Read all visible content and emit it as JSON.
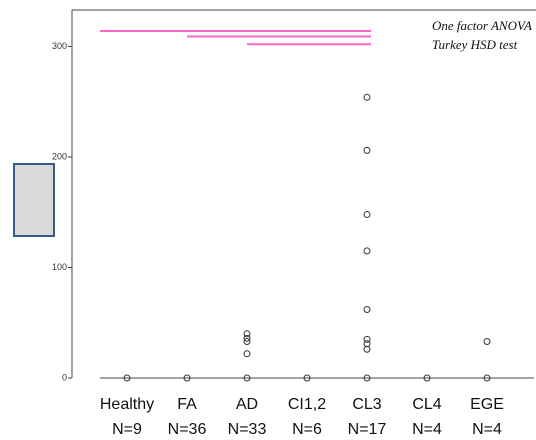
{
  "chart_data": {
    "type": "box",
    "annotation": [
      "One factor ANOVA",
      "Turkey HSD test"
    ],
    "categories": [
      "Healthy",
      "FA",
      "AD",
      "CI1,2",
      "CL3",
      "CL4",
      "EGE"
    ],
    "n_labels": [
      "N=9",
      "N=36",
      "N=33",
      "N=6",
      "N=17",
      "N=4",
      "N=4"
    ],
    "outliers": [
      [
        0
      ],
      [
        0
      ],
      [
        40,
        36,
        33,
        22,
        0
      ],
      [
        0
      ],
      [
        254,
        206,
        148,
        115,
        62,
        35,
        31,
        26,
        0
      ],
      [
        0
      ],
      [
        33,
        0
      ]
    ],
    "comparisons": [
      {
        "from": 0,
        "to": 4,
        "y": 314
      },
      {
        "from": 1,
        "to": 4,
        "y": 309
      },
      {
        "from": 2,
        "to": 4,
        "y": 302
      }
    ],
    "comparison_color": "#ff66cc",
    "ylim": [
      0,
      333
    ],
    "yticks": [
      0,
      100,
      200,
      300
    ]
  }
}
